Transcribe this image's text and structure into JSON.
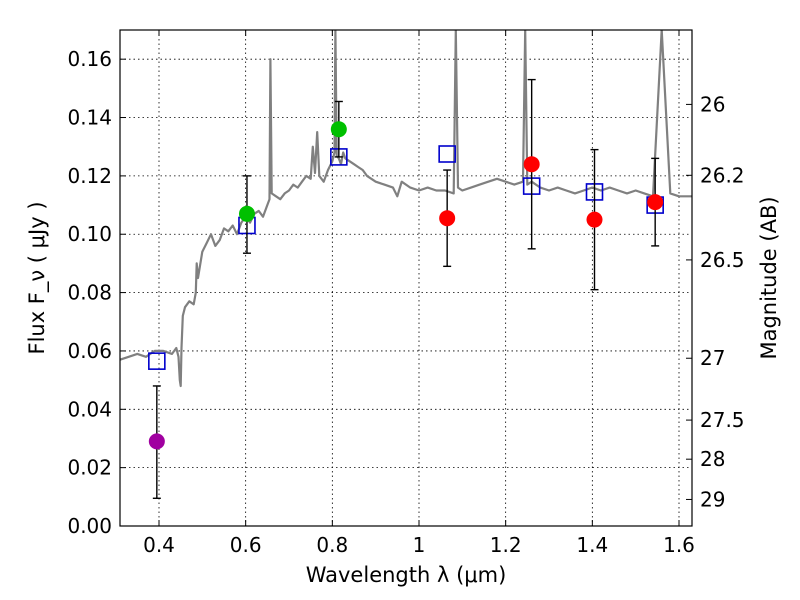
{
  "chart_data": {
    "type": "scatter",
    "xlabel": "Wavelength  λ (μm)",
    "ylabel_left": "Flux  F_ν  ( μJy )",
    "ylabel_right": "Magnitude (AB)",
    "xlim": [
      0.31,
      1.63
    ],
    "ylim": [
      0.0,
      0.17
    ],
    "grid": true,
    "x_ticks": [
      0.4,
      0.6,
      0.8,
      1.0,
      1.2,
      1.4,
      1.6
    ],
    "x_tick_labels": [
      "0.4",
      "0.6",
      "0.8",
      "1",
      "1.2",
      "1.4",
      "1.6"
    ],
    "y_ticks": [
      0.0,
      0.02,
      0.04,
      0.06,
      0.08,
      0.1,
      0.12,
      0.14,
      0.16
    ],
    "y_tick_labels": [
      "0.00",
      "0.02",
      "0.04",
      "0.06",
      "0.08",
      "0.10",
      "0.12",
      "0.14",
      "0.16"
    ],
    "right_ticks": [
      {
        "label": "26",
        "flux": 0.1445
      },
      {
        "label": "26.2",
        "flux": 0.1202
      },
      {
        "label": "26.5",
        "flux": 0.0912
      },
      {
        "label": "27",
        "flux": 0.0575
      },
      {
        "label": "27.5",
        "flux": 0.0363
      },
      {
        "label": "28",
        "flux": 0.0229
      },
      {
        "label": "29",
        "flux": 0.0091
      }
    ],
    "series": [
      {
        "name": "template-spectrum",
        "kind": "line",
        "color": "#808080",
        "x": [
          0.31,
          0.33,
          0.35,
          0.37,
          0.39,
          0.41,
          0.43,
          0.44,
          0.445,
          0.448,
          0.45,
          0.452,
          0.455,
          0.46,
          0.47,
          0.48,
          0.485,
          0.487,
          0.49,
          0.5,
          0.51,
          0.52,
          0.53,
          0.54,
          0.55,
          0.56,
          0.57,
          0.58,
          0.59,
          0.6,
          0.61,
          0.62,
          0.63,
          0.64,
          0.65,
          0.655,
          0.657,
          0.66,
          0.67,
          0.68,
          0.69,
          0.7,
          0.71,
          0.72,
          0.73,
          0.74,
          0.75,
          0.755,
          0.76,
          0.765,
          0.77,
          0.78,
          0.79,
          0.8,
          0.805,
          0.807,
          0.81,
          0.815,
          0.82,
          0.825,
          0.83,
          0.84,
          0.85,
          0.86,
          0.87,
          0.88,
          0.9,
          0.92,
          0.94,
          0.95,
          0.96,
          0.98,
          1.0,
          1.02,
          1.04,
          1.06,
          1.08,
          1.085,
          1.09,
          1.1,
          1.12,
          1.14,
          1.16,
          1.18,
          1.2,
          1.22,
          1.24,
          1.245,
          1.25,
          1.26,
          1.28,
          1.3,
          1.32,
          1.34,
          1.36,
          1.38,
          1.4,
          1.42,
          1.44,
          1.46,
          1.48,
          1.5,
          1.52,
          1.54,
          1.56,
          1.58,
          1.6,
          1.63
        ],
        "y": [
          0.057,
          0.058,
          0.059,
          0.058,
          0.06,
          0.06,
          0.059,
          0.061,
          0.058,
          0.05,
          0.048,
          0.061,
          0.072,
          0.075,
          0.077,
          0.076,
          0.08,
          0.09,
          0.085,
          0.094,
          0.097,
          0.1,
          0.096,
          0.098,
          0.102,
          0.101,
          0.103,
          0.1,
          0.104,
          0.106,
          0.104,
          0.107,
          0.108,
          0.106,
          0.11,
          0.112,
          0.16,
          0.114,
          0.113,
          0.112,
          0.114,
          0.115,
          0.117,
          0.116,
          0.118,
          0.12,
          0.119,
          0.13,
          0.121,
          0.135,
          0.12,
          0.118,
          0.122,
          0.125,
          0.128,
          0.17,
          0.127,
          0.126,
          0.124,
          0.128,
          0.126,
          0.125,
          0.124,
          0.123,
          0.122,
          0.12,
          0.118,
          0.117,
          0.116,
          0.113,
          0.118,
          0.116,
          0.115,
          0.116,
          0.115,
          0.115,
          0.114,
          0.17,
          0.116,
          0.115,
          0.116,
          0.117,
          0.118,
          0.119,
          0.118,
          0.117,
          0.118,
          0.17,
          0.117,
          0.118,
          0.116,
          0.115,
          0.116,
          0.115,
          0.114,
          0.115,
          0.116,
          0.115,
          0.116,
          0.115,
          0.114,
          0.115,
          0.114,
          0.113,
          0.17,
          0.114,
          0.113,
          0.113
        ]
      },
      {
        "name": "model-photometry",
        "kind": "open-square",
        "color": "#0000cc",
        "x": [
          0.395,
          0.603,
          0.815,
          1.065,
          1.26,
          1.405,
          1.545
        ],
        "y": [
          0.0565,
          0.103,
          0.1265,
          0.1275,
          0.1165,
          0.1145,
          0.11
        ]
      },
      {
        "name": "observed-photometry",
        "kind": "filled-circle",
        "x": [
          0.395,
          0.603,
          0.815,
          1.065,
          1.26,
          1.405,
          1.545
        ],
        "y": [
          0.029,
          0.107,
          0.136,
          0.1055,
          0.124,
          0.105,
          0.111
        ],
        "yerr_low": [
          0.0195,
          0.0135,
          0.0095,
          0.0165,
          0.029,
          0.024,
          0.015
        ],
        "yerr_high": [
          0.019,
          0.013,
          0.0095,
          0.0165,
          0.029,
          0.024,
          0.015
        ],
        "colors": [
          "#a000a0",
          "#00c000",
          "#00c000",
          "#ff0000",
          "#ff0000",
          "#ff0000",
          "#ff0000"
        ]
      }
    ]
  }
}
